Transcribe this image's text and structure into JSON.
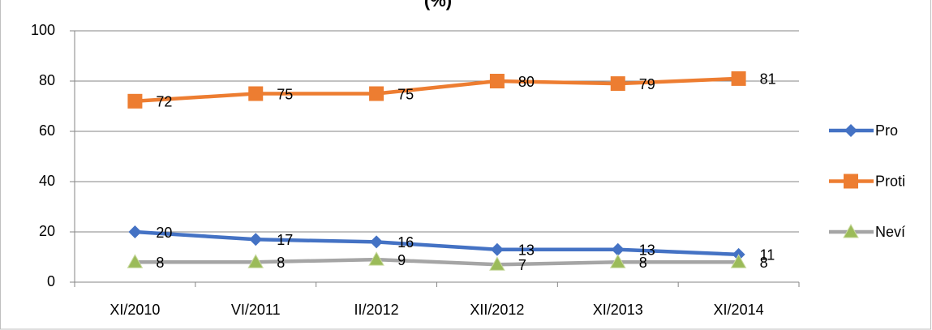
{
  "chart_data": {
    "type": "line",
    "title": "(%)",
    "categories": [
      "XI/2010",
      "VI/2011",
      "II/2012",
      "XII/2012",
      "XI/2013",
      "XI/2014"
    ],
    "series": [
      {
        "name": "Pro",
        "color": "#4472c4",
        "marker": "diamond",
        "marker_color": "#4472c4",
        "values": [
          20,
          17,
          16,
          13,
          13,
          11
        ]
      },
      {
        "name": "Proti",
        "color": "#ed7d31",
        "marker": "square",
        "marker_color": "#ed7d31",
        "values": [
          72,
          75,
          75,
          80,
          79,
          81
        ]
      },
      {
        "name": "Neví",
        "color": "#a5a5a5",
        "marker": "triangle",
        "marker_color": "#9bbb59",
        "values": [
          8,
          8,
          9,
          7,
          8,
          8
        ]
      }
    ],
    "ylim": [
      0,
      100
    ],
    "yticks": [
      0,
      20,
      40,
      60,
      80,
      100
    ],
    "grid": true,
    "legend": "right"
  }
}
